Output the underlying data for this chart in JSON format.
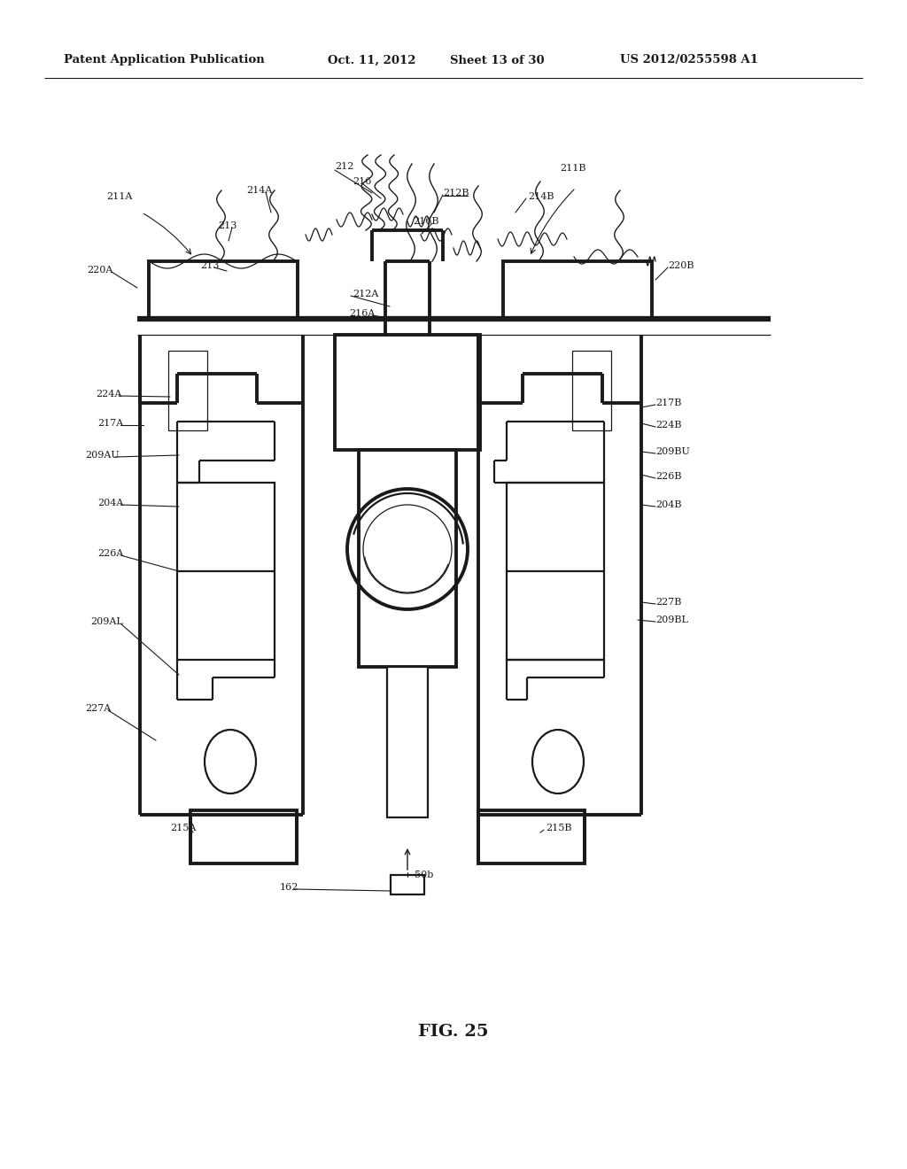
{
  "bg_color": "#ffffff",
  "lc": "#1a1a1a",
  "header_left": "Patent Application Publication",
  "header_mid": "Oct. 11, 2012  Sheet 13 of 30",
  "header_right": "US 2012/0255598 A1",
  "fig_label": "FIG. 25",
  "lw_thin": 0.9,
  "lw_med": 1.6,
  "lw_thick": 2.8,
  "lw_xthick": 4.5
}
